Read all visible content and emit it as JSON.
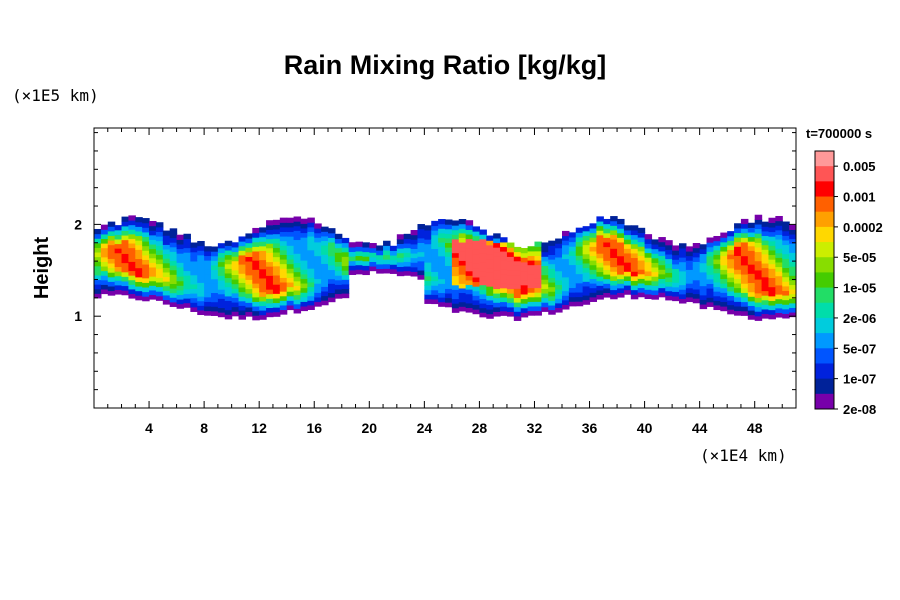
{
  "chart_data": {
    "type": "heatmap",
    "title": "Rain Mixing Ratio [kg/kg]",
    "ylabel": "Height",
    "x_scale_label": "(×1E4 km)",
    "y_scale_label": "(×1E5 km)",
    "time_label": "t=700000 s",
    "x_ticks": [
      4,
      8,
      12,
      16,
      20,
      24,
      28,
      32,
      36,
      40,
      44,
      48
    ],
    "y_ticks": [
      1,
      2
    ],
    "xlim": [
      0,
      51
    ],
    "ylim": [
      0,
      3.05
    ],
    "colorbar": {
      "labels": [
        "0.005",
        "0.001",
        "0.0002",
        "5e-05",
        "1e-05",
        "2e-06",
        "5e-07",
        "1e-07",
        "2e-08"
      ],
      "colors": [
        "#ff9999",
        "#ff5555",
        "#ff0000",
        "#ff6000",
        "#ffa000",
        "#ffd800",
        "#ccee00",
        "#88dd00",
        "#44cc00",
        "#22dd66",
        "#00ddaa",
        "#00ccdd",
        "#0099ff",
        "#0055ff",
        "#0022dd",
        "#002299",
        "#7700aa"
      ]
    },
    "cloud_band": {
      "x_range": [
        0,
        51
      ],
      "y_range": [
        1.1,
        2.0
      ],
      "core_x": [
        26,
        32
      ],
      "core_y": [
        1.3,
        1.8
      ]
    }
  }
}
